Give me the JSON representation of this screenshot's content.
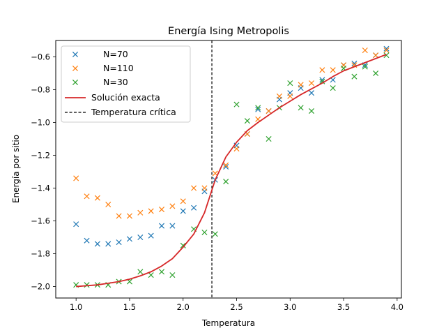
{
  "chart_data": {
    "type": "scatter",
    "title": "Energía Ising Metropolis",
    "xlabel": "Temperatura",
    "ylabel": "Energía por sitio",
    "xlim": [
      0.81,
      4.04
    ],
    "ylim": [
      -2.07,
      -0.5
    ],
    "xticks": [
      1.0,
      1.5,
      2.0,
      2.5,
      3.0,
      3.5,
      4.0
    ],
    "xtick_labels": [
      "1.0",
      "1.5",
      "2.0",
      "2.5",
      "3.0",
      "3.5",
      "4.0"
    ],
    "yticks": [
      -2.0,
      -1.8,
      -1.6,
      -1.4,
      -1.2,
      -1.0,
      -0.8,
      -0.6
    ],
    "ytick_labels": [
      "−2.0",
      "−1.8",
      "−1.6",
      "−1.4",
      "−1.2",
      "−1.0",
      "−0.8",
      "−0.6"
    ],
    "grid": false,
    "legend_position": "upper-left",
    "x": [
      1.0,
      1.1,
      1.2,
      1.3,
      1.4,
      1.5,
      1.6,
      1.7,
      1.8,
      1.9,
      2.0,
      2.1,
      2.2,
      2.3,
      2.4,
      2.5,
      2.6,
      2.7,
      2.8,
      2.9,
      3.0,
      3.1,
      3.2,
      3.3,
      3.4,
      3.5,
      3.6,
      3.7,
      3.8,
      3.9
    ],
    "series": [
      {
        "name": "N=70",
        "color": "#1f77b4",
        "marker": "x",
        "values": [
          -1.62,
          -1.72,
          -1.74,
          -1.74,
          -1.73,
          -1.71,
          -1.7,
          -1.69,
          -1.63,
          -1.63,
          -1.54,
          -1.52,
          -1.42,
          -1.35,
          -1.27,
          -1.14,
          -1.07,
          -0.92,
          -0.93,
          -0.86,
          -0.82,
          -0.79,
          -0.82,
          -0.74,
          -0.74,
          -0.65,
          -0.64,
          -0.65,
          -0.59,
          -0.55
        ]
      },
      {
        "name": "N=110",
        "color": "#ff7f0e",
        "marker": "x",
        "values": [
          -1.34,
          -1.45,
          -1.46,
          -1.5,
          -1.57,
          -1.57,
          -1.55,
          -1.54,
          -1.53,
          -1.51,
          -1.48,
          -1.4,
          -1.4,
          -1.31,
          -1.26,
          -1.16,
          -1.07,
          -0.98,
          -0.93,
          -0.84,
          -0.84,
          -0.77,
          -0.76,
          -0.68,
          -0.68,
          -0.65,
          -0.65,
          -0.56,
          -0.59,
          -0.56
        ]
      },
      {
        "name": "N=30",
        "color": "#2ca02c",
        "marker": "x",
        "values": [
          -1.99,
          -1.99,
          -1.99,
          -1.99,
          -1.97,
          -1.97,
          -1.91,
          -1.93,
          -1.91,
          -1.93,
          -1.75,
          -1.65,
          -1.67,
          -1.68,
          -1.36,
          -0.89,
          -0.99,
          -0.91,
          -1.1,
          -0.91,
          -0.76,
          -0.91,
          -0.93,
          -0.75,
          -0.79,
          -0.67,
          -0.72,
          -0.66,
          -0.7,
          -0.59
        ]
      }
    ],
    "exact_solution": {
      "name": "Solución exacta",
      "color": "#d62728",
      "style": "solid",
      "x": [
        1.0,
        1.1,
        1.2,
        1.3,
        1.4,
        1.5,
        1.6,
        1.7,
        1.8,
        1.9,
        2.0,
        2.1,
        2.2,
        2.3,
        2.4,
        2.5,
        2.6,
        2.7,
        2.8,
        2.9,
        3.0,
        3.1,
        3.2,
        3.3,
        3.4,
        3.5,
        3.6,
        3.7,
        3.8,
        3.9
      ],
      "values": [
        -2.0,
        -1.995,
        -1.99,
        -1.98,
        -1.97,
        -1.955,
        -1.935,
        -1.91,
        -1.875,
        -1.83,
        -1.76,
        -1.68,
        -1.55,
        -1.35,
        -1.21,
        -1.12,
        -1.05,
        -1.0,
        -0.955,
        -0.91,
        -0.87,
        -0.83,
        -0.795,
        -0.76,
        -0.72,
        -0.685,
        -0.66,
        -0.635,
        -0.61,
        -0.585
      ]
    },
    "critical_temperature": {
      "name": "Temperatura crítica",
      "x": 2.269,
      "color": "#000000",
      "style": "dashed"
    }
  }
}
